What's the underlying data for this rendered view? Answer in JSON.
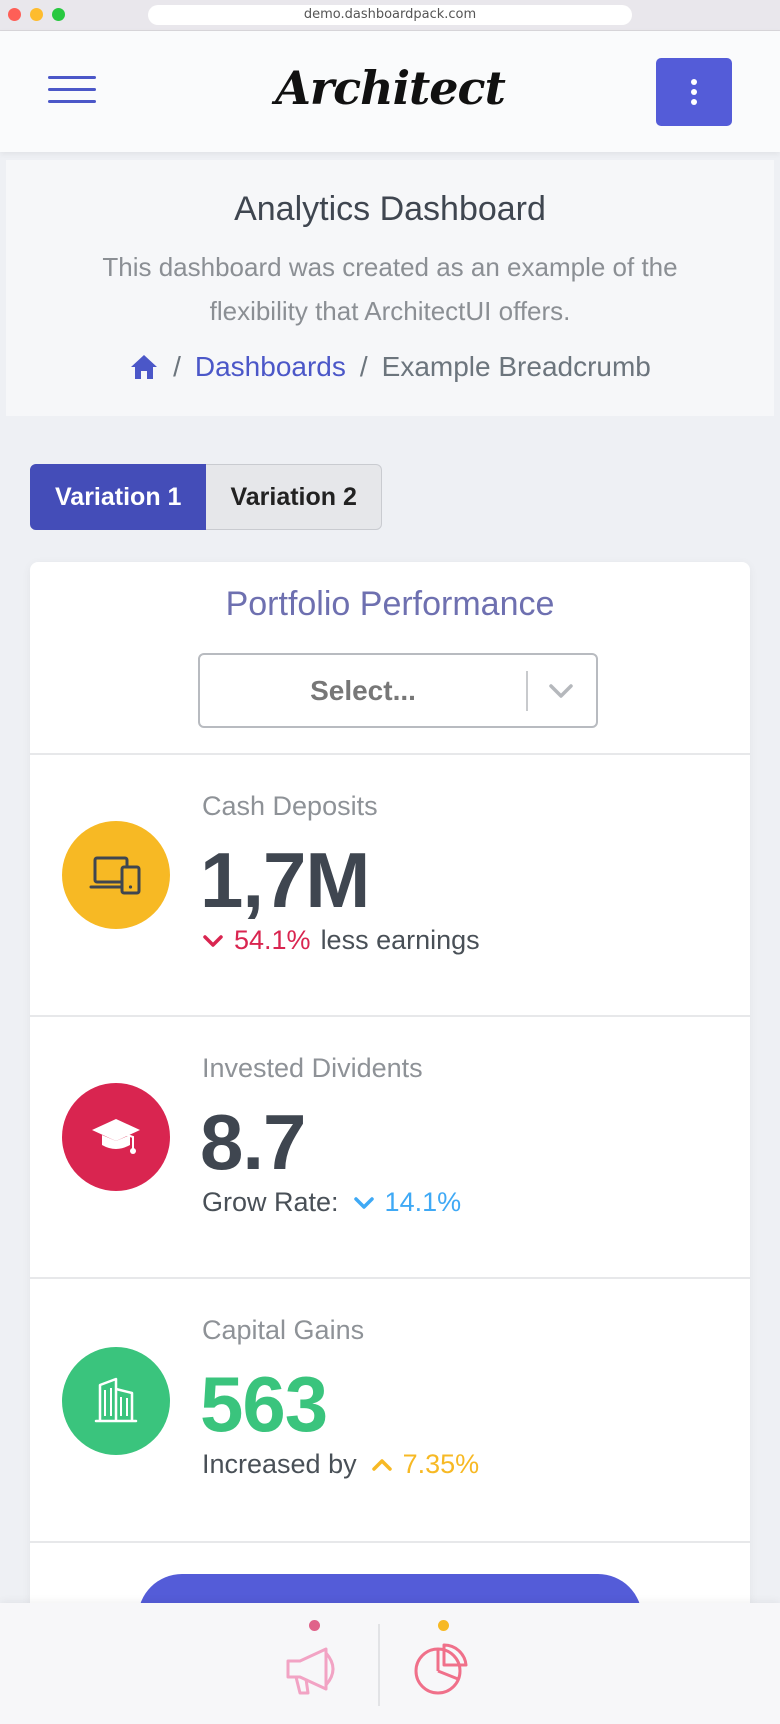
{
  "browser": {
    "url": "demo.dashboardpack.com"
  },
  "header": {
    "logo": "Architect"
  },
  "page": {
    "title": "Analytics Dashboard",
    "subtitle": "This dashboard was created as an example of the flexibility that ArchitectUI offers.",
    "breadcrumb": {
      "sep": "/",
      "link": "Dashboards",
      "current": "Example Breadcrumb"
    }
  },
  "tabs": [
    {
      "label": "Variation 1"
    },
    {
      "label": "Variation 2"
    }
  ],
  "card": {
    "title": "Portfolio Performance",
    "select": {
      "placeholder": "Select..."
    },
    "metrics": [
      {
        "label": "Cash Deposits",
        "value": "1,7M",
        "change": "54.1%",
        "suffix": "less earnings",
        "icon": "devices-icon",
        "color": "#f7b924"
      },
      {
        "label": "Invested Dividents",
        "value": "8.7",
        "prefix": "Grow Rate:",
        "change": "14.1%",
        "icon": "graduation-cap-icon",
        "color": "#d92550"
      },
      {
        "label": "Capital Gains",
        "value": "563",
        "prefix": "Increased by",
        "change": "7.35%",
        "icon": "building-icon",
        "color": "#3ac47d"
      }
    ]
  },
  "colors": {
    "primary": "#545cd8",
    "warning": "#f7b924",
    "danger": "#d92550",
    "success": "#3ac47d",
    "info": "#3fa9f5"
  }
}
